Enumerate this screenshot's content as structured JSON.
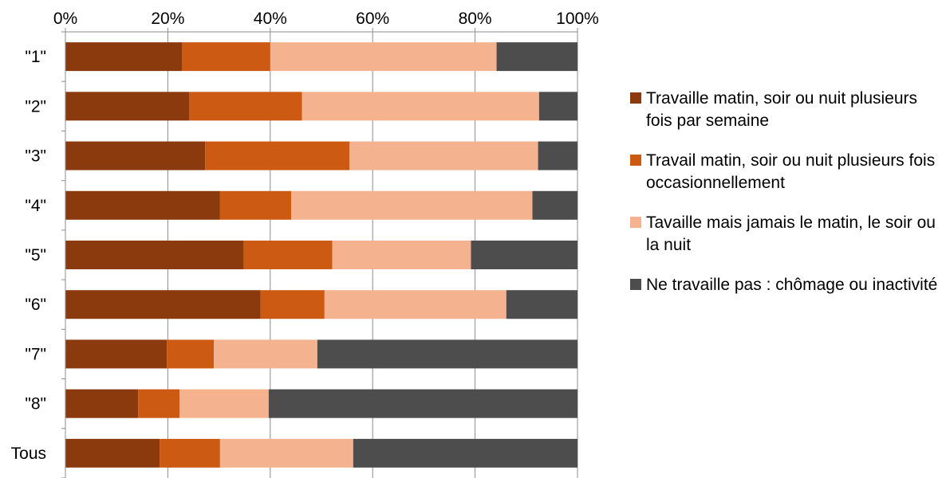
{
  "chart_data": {
    "type": "bar",
    "orientation": "horizontal",
    "stacked": "percent",
    "categories": [
      "\"1\"",
      "\"2\"",
      "\"3\"",
      "\"4\"",
      "\"5\"",
      "\"6\"",
      "\"7\"",
      "\"8\"",
      "Tous"
    ],
    "series": [
      {
        "name": "Travaille matin, soir ou nuit plusieurs fois par semaine",
        "color": "#8B3A0E",
        "values": [
          22.8,
          24.2,
          27.3,
          30.2,
          34.8,
          38.1,
          19.8,
          14.2,
          18.4
        ]
      },
      {
        "name": "Travail matin, soir ou nuit plusieurs fois occasionnellement",
        "color": "#CC5A12",
        "values": [
          17.2,
          22.0,
          28.2,
          13.9,
          17.3,
          12.5,
          9.2,
          8.1,
          11.8
        ]
      },
      {
        "name": "Tavaille mais jamais le matin, le soir ou la nuit",
        "color": "#F4B38E",
        "values": [
          44.2,
          46.3,
          36.8,
          47.1,
          27.1,
          35.5,
          20.2,
          17.4,
          26.0
        ]
      },
      {
        "name": "Ne travaille pas : chômage ou inactivité",
        "color": "#4D4D4D",
        "values": [
          15.8,
          7.5,
          7.7,
          8.8,
          20.8,
          13.9,
          50.8,
          60.3,
          43.8
        ]
      }
    ],
    "xlim": [
      0,
      100
    ],
    "x_ticks": [
      "0%",
      "20%",
      "40%",
      "60%",
      "80%",
      "100%"
    ],
    "axis_position": "top",
    "grid": true,
    "legend_position": "right"
  }
}
